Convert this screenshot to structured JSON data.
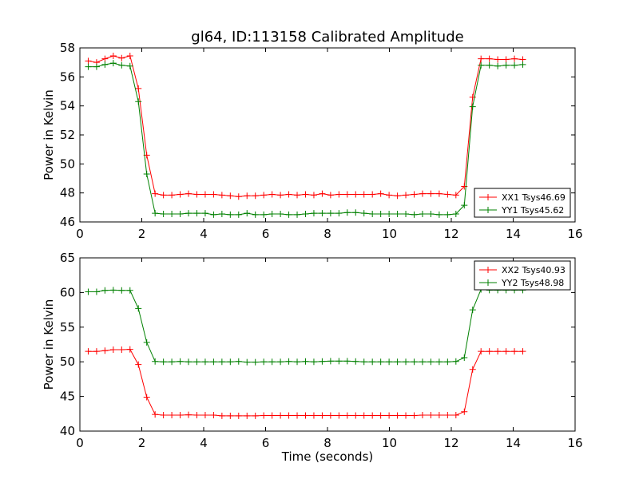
{
  "figure_title": "gl64, ID:113158 Calibrated Amplitude",
  "chart_data": [
    {
      "type": "line",
      "xlabel": "",
      "ylabel": "Power in Kelvin",
      "xlim": [
        0,
        16
      ],
      "ylim": [
        46,
        58
      ],
      "xticks": [
        "0",
        "2",
        "4",
        "6",
        "8",
        "10",
        "12",
        "14",
        "16"
      ],
      "yticks": [
        "46",
        "48",
        "50",
        "52",
        "54",
        "56",
        "58"
      ],
      "grid": false,
      "legend_position": "lower-right",
      "x": [
        0.27,
        0.54,
        0.81,
        1.08,
        1.35,
        1.62,
        1.89,
        2.16,
        2.43,
        2.7,
        2.97,
        3.24,
        3.51,
        3.78,
        4.05,
        4.32,
        4.59,
        4.86,
        5.13,
        5.4,
        5.67,
        5.94,
        6.21,
        6.48,
        6.75,
        7.02,
        7.29,
        7.56,
        7.83,
        8.1,
        8.37,
        8.64,
        8.91,
        9.18,
        9.45,
        9.72,
        9.99,
        10.26,
        10.53,
        10.8,
        11.07,
        11.34,
        11.61,
        11.88,
        12.15,
        12.42,
        12.69,
        12.96,
        13.23,
        13.5,
        13.77,
        14.04,
        14.31
      ],
      "series": [
        {
          "name": "XX1 Tsys46.69",
          "color": "#ff0000",
          "values": [
            57.1,
            57.0,
            57.25,
            57.45,
            57.3,
            57.45,
            55.2,
            50.6,
            47.95,
            47.85,
            47.85,
            47.9,
            47.95,
            47.9,
            47.9,
            47.9,
            47.85,
            47.8,
            47.75,
            47.8,
            47.8,
            47.85,
            47.9,
            47.85,
            47.9,
            47.85,
            47.9,
            47.85,
            47.95,
            47.85,
            47.9,
            47.9,
            47.9,
            47.9,
            47.9,
            47.95,
            47.85,
            47.8,
            47.85,
            47.9,
            47.95,
            47.95,
            47.95,
            47.9,
            47.85,
            48.45,
            54.6,
            57.25,
            57.25,
            57.2,
            57.2,
            57.25,
            57.2
          ]
        },
        {
          "name": "YY1 Tsys45.62",
          "color": "#008000",
          "values": [
            56.7,
            56.7,
            56.85,
            56.95,
            56.8,
            56.75,
            54.3,
            49.3,
            46.6,
            46.55,
            46.55,
            46.55,
            46.6,
            46.6,
            46.6,
            46.5,
            46.55,
            46.5,
            46.5,
            46.6,
            46.5,
            46.5,
            46.55,
            46.55,
            46.5,
            46.5,
            46.55,
            46.6,
            46.6,
            46.6,
            46.6,
            46.65,
            46.65,
            46.6,
            46.55,
            46.55,
            46.55,
            46.55,
            46.55,
            46.5,
            46.55,
            46.55,
            46.5,
            46.5,
            46.55,
            47.15,
            53.95,
            56.8,
            56.8,
            56.75,
            56.8,
            56.8,
            56.85
          ]
        }
      ]
    },
    {
      "type": "line",
      "xlabel": "Time (seconds)",
      "ylabel": "Power in Kelvin",
      "xlim": [
        0,
        16
      ],
      "ylim": [
        40,
        65
      ],
      "xticks": [
        "0",
        "2",
        "4",
        "6",
        "8",
        "10",
        "12",
        "14",
        "16"
      ],
      "yticks": [
        "40",
        "45",
        "50",
        "55",
        "60",
        "65"
      ],
      "grid": false,
      "legend_position": "upper-right",
      "x": [
        0.27,
        0.54,
        0.81,
        1.08,
        1.35,
        1.62,
        1.89,
        2.16,
        2.43,
        2.7,
        2.97,
        3.24,
        3.51,
        3.78,
        4.05,
        4.32,
        4.59,
        4.86,
        5.13,
        5.4,
        5.67,
        5.94,
        6.21,
        6.48,
        6.75,
        7.02,
        7.29,
        7.56,
        7.83,
        8.1,
        8.37,
        8.64,
        8.91,
        9.18,
        9.45,
        9.72,
        9.99,
        10.26,
        10.53,
        10.8,
        11.07,
        11.34,
        11.61,
        11.88,
        12.15,
        12.42,
        12.69,
        12.96,
        13.23,
        13.5,
        13.77,
        14.04,
        14.31
      ],
      "series": [
        {
          "name": "XX2 Tsys40.93",
          "color": "#ff0000",
          "values": [
            51.5,
            51.5,
            51.6,
            51.75,
            51.75,
            51.8,
            49.6,
            44.9,
            42.4,
            42.3,
            42.3,
            42.3,
            42.35,
            42.3,
            42.3,
            42.3,
            42.2,
            42.2,
            42.2,
            42.2,
            42.2,
            42.25,
            42.25,
            42.25,
            42.25,
            42.25,
            42.25,
            42.25,
            42.25,
            42.25,
            42.25,
            42.25,
            42.25,
            42.25,
            42.25,
            42.25,
            42.25,
            42.25,
            42.25,
            42.25,
            42.3,
            42.3,
            42.3,
            42.3,
            42.3,
            42.8,
            48.9,
            51.5,
            51.5,
            51.5,
            51.5,
            51.5,
            51.5
          ]
        },
        {
          "name": "YY2 Tsys48.98",
          "color": "#008000",
          "values": [
            60.1,
            60.1,
            60.3,
            60.35,
            60.3,
            60.3,
            57.7,
            52.8,
            50.05,
            50.0,
            50.0,
            50.05,
            50.0,
            50.0,
            50.0,
            50.0,
            50.0,
            50.0,
            50.05,
            49.95,
            49.95,
            50.0,
            50.0,
            50.0,
            50.05,
            50.0,
            50.05,
            50.0,
            50.05,
            50.1,
            50.1,
            50.1,
            50.05,
            50.0,
            50.0,
            50.0,
            50.0,
            50.0,
            50.0,
            50.0,
            50.0,
            50.0,
            50.0,
            50.0,
            50.05,
            50.6,
            57.5,
            60.45,
            60.35,
            60.35,
            60.35,
            60.35,
            60.35
          ]
        }
      ]
    }
  ]
}
